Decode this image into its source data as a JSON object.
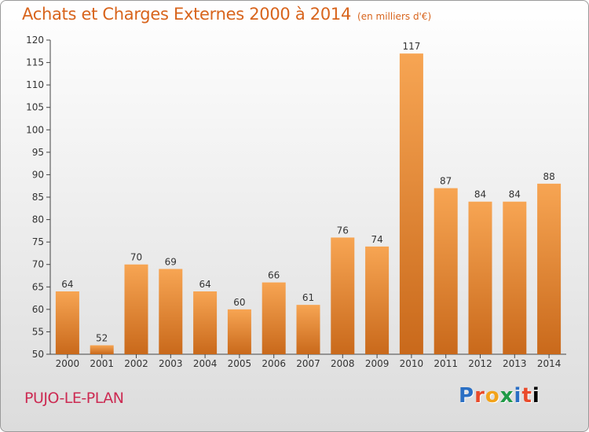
{
  "title": "Achats et Charges Externes 2000 à 2014",
  "subtitle": "(en milliers d'€)",
  "commune": "PUJO-LE-PLAN",
  "logo": [
    "P",
    "r",
    "o",
    "x",
    "i",
    "t",
    "i"
  ],
  "colors": {
    "bar_top": "#f7a553",
    "bar_bottom": "#c9691b",
    "axis": "#444444",
    "title": "#d8641c",
    "commune": "#cc2a52"
  },
  "chart_data": {
    "type": "bar",
    "categories": [
      "2000",
      "2001",
      "2002",
      "2003",
      "2004",
      "2005",
      "2006",
      "2007",
      "2008",
      "2009",
      "2010",
      "2011",
      "2012",
      "2013",
      "2014"
    ],
    "values": [
      64,
      52,
      70,
      69,
      64,
      60,
      66,
      61,
      76,
      74,
      117,
      87,
      84,
      84,
      88
    ],
    "ylim": [
      50,
      120
    ],
    "yticks": [
      50,
      55,
      60,
      65,
      70,
      75,
      80,
      85,
      90,
      95,
      100,
      105,
      110,
      115,
      120
    ],
    "grid": false,
    "legend": "none"
  }
}
